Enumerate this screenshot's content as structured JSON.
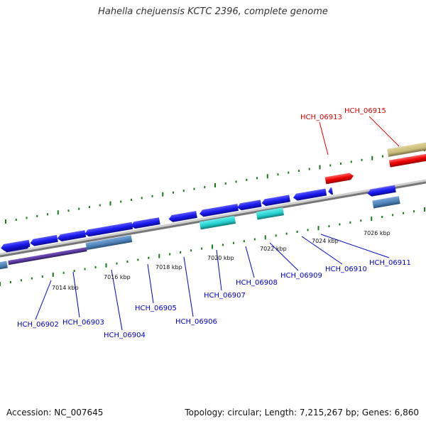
{
  "title": "Hahella chejuensis KCTC 2396, complete genome",
  "footer": {
    "accession": "Accession: NC_007645",
    "summary": "Topology: circular; Length: 7,215,267 bp; Genes: 6,860"
  },
  "colors": {
    "cds_forward": "#1a1aee",
    "cds_reverse": "#1a1aee",
    "highlight_red": "#ee0000",
    "cyan_feature": "#22cccc",
    "steelblue_feature": "#4a7fb5",
    "tan_feature": "#c8bb7a",
    "purple_feature": "#553399",
    "backbone": "#888888",
    "tick": "#1a7a1a"
  },
  "kbp_ticks": [
    {
      "label": "7014 kbp"
    },
    {
      "label": "7016 kbp"
    },
    {
      "label": "7018 kbp"
    },
    {
      "label": "7020 kbp"
    },
    {
      "label": "7022 kbp"
    },
    {
      "label": "7024 kbp"
    },
    {
      "label": "7026 kbp"
    }
  ],
  "gene_labels": [
    {
      "name": "HCH_06902",
      "color": "blue"
    },
    {
      "name": "HCH_06903",
      "color": "blue"
    },
    {
      "name": "HCH_06904",
      "color": "blue"
    },
    {
      "name": "HCH_06905",
      "color": "blue"
    },
    {
      "name": "HCH_06906",
      "color": "blue"
    },
    {
      "name": "HCH_06907",
      "color": "blue"
    },
    {
      "name": "HCH_06908",
      "color": "blue"
    },
    {
      "name": "HCH_06909",
      "color": "blue"
    },
    {
      "name": "HCH_06910",
      "color": "blue"
    },
    {
      "name": "HCH_06911",
      "color": "blue"
    },
    {
      "name": "HCH_06913",
      "color": "red"
    },
    {
      "name": "HCH_06915",
      "color": "red"
    }
  ]
}
